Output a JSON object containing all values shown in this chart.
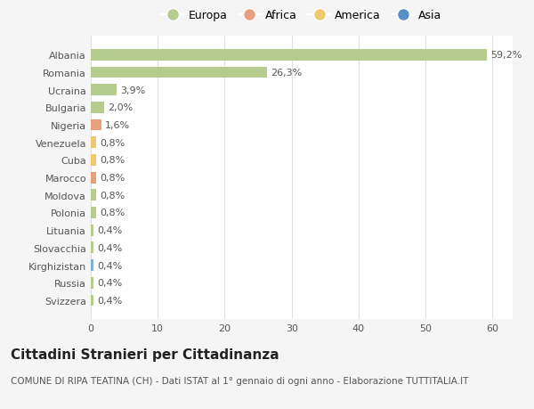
{
  "countries": [
    "Albania",
    "Romania",
    "Ucraina",
    "Bulgaria",
    "Nigeria",
    "Venezuela",
    "Cuba",
    "Marocco",
    "Moldova",
    "Polonia",
    "Lituania",
    "Slovacchia",
    "Kirghizistan",
    "Russia",
    "Svizzera"
  ],
  "values": [
    59.2,
    26.3,
    3.9,
    2.0,
    1.6,
    0.8,
    0.8,
    0.8,
    0.8,
    0.8,
    0.4,
    0.4,
    0.4,
    0.4,
    0.4
  ],
  "labels": [
    "59,2%",
    "26,3%",
    "3,9%",
    "2,0%",
    "1,6%",
    "0,8%",
    "0,8%",
    "0,8%",
    "0,8%",
    "0,8%",
    "0,4%",
    "0,4%",
    "0,4%",
    "0,4%",
    "0,4%"
  ],
  "colors": [
    "#b5cc8e",
    "#b5cc8e",
    "#b5cc8e",
    "#b5cc8e",
    "#e8a07c",
    "#f0c96e",
    "#f0c96e",
    "#e8a07c",
    "#b5cc8e",
    "#b5cc8e",
    "#b5cc8e",
    "#b5cc8e",
    "#7eb0d5",
    "#b5cc8e",
    "#b5cc8e"
  ],
  "legend_labels": [
    "Europa",
    "Africa",
    "America",
    "Asia"
  ],
  "legend_colors": [
    "#b5cc8e",
    "#e8a07c",
    "#f0c96e",
    "#5b8ec4"
  ],
  "title": "Cittadini Stranieri per Cittadinanza",
  "subtitle": "COMUNE DI RIPA TEATINA (CH) - Dati ISTAT al 1° gennaio di ogni anno - Elaborazione TUTTITALIA.IT",
  "xlim": [
    0,
    63
  ],
  "xticks": [
    0,
    10,
    20,
    30,
    40,
    50,
    60
  ],
  "bg_color": "#f5f5f5",
  "bar_area_color": "#ffffff",
  "grid_color": "#e0e0e0",
  "title_fontsize": 11,
  "subtitle_fontsize": 7.5,
  "label_fontsize": 8,
  "tick_fontsize": 8,
  "legend_fontsize": 9
}
